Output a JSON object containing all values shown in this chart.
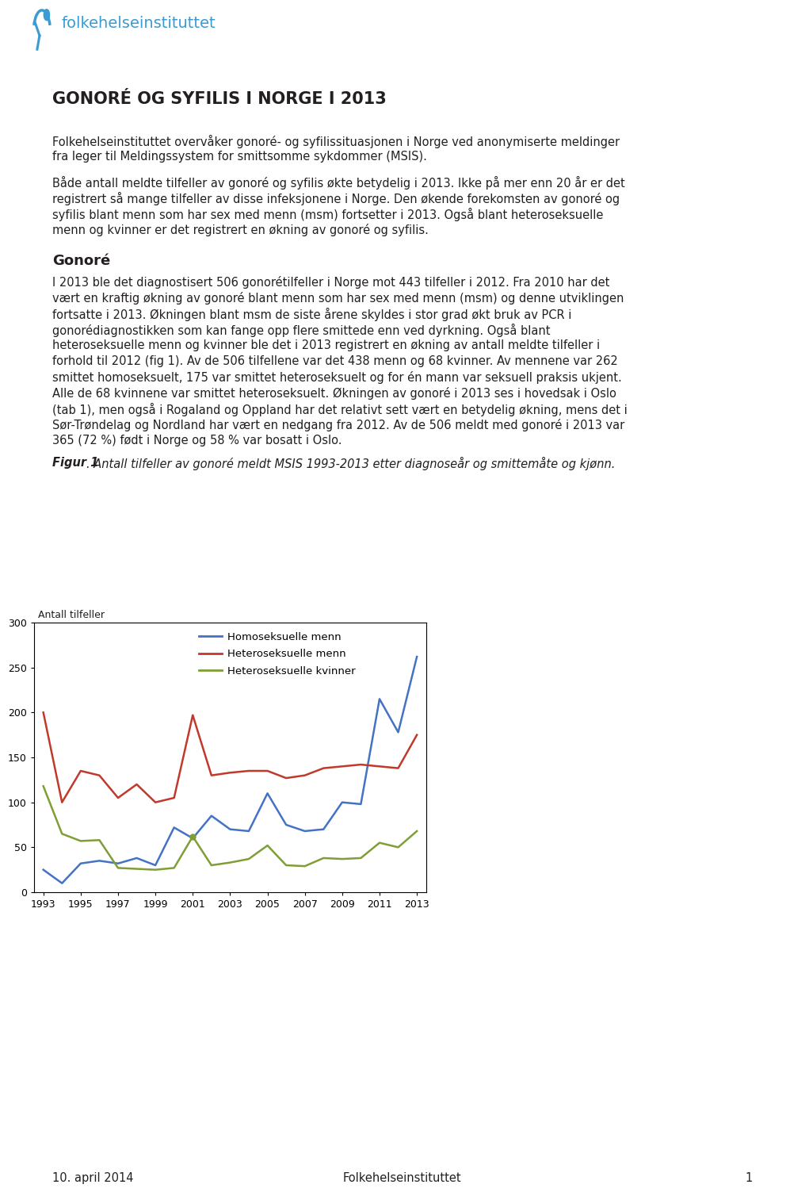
{
  "title": "GONORÉ OG SYFILIS I NORGE I 2013",
  "header_line1": "Folkehelseinstituttet overvåker gonoré- og syfilissituasjonen i Norge ved anonymiserte meldinger",
  "header_line2": "fra leger til Meldingssystem for smittsomme sykdommer (MSIS).",
  "para1_line1": "Både antall meldte tilfeller av gonoré og syfilis økte betydelig i 2013. Ikke på mer enn 20 år er det",
  "para1_line2": "registrert så mange tilfeller av disse infeksjonene i Norge. Den økende forekomsten av gonoré og",
  "para1_line3": "syfilis blant menn som har sex med menn (msm) fortsetter i 2013. Også blant heteroseksuelle",
  "para1_line4": "menn og kvinner er det registrert en økning av gonoré og syfilis.",
  "section_gonoree": "Gonoré",
  "para2_line1": "I 2013 ble det diagnostisert 506 gonorétilfeller i Norge mot 443 tilfeller i 2012. Fra 2010 har det",
  "para2_line2": "vært en kraftig økning av gonoré blant menn som har sex med menn (msm) og denne utviklingen",
  "para2_line3": "fortsatte i 2013. Økningen blant msm de siste årene skyldes i stor grad økt bruk av PCR i",
  "para2_line4": "gonorédiagnostikken som kan fange opp flere smittede enn ved dyrkning. Også blant",
  "para2_line5": "heteroseksuelle menn og kvinner ble det i 2013 registrert en økning av antall meldte tilfeller i",
  "para2_line6": "forhold til 2012 (fig 1). Av de 506 tilfellene var det 438 menn og 68 kvinner. Av mennene var 262",
  "para2_line7": "smittet homoseksuelt, 175 var smittet heteroseksuelt og for én mann var seksuell praksis ukjent.",
  "para2_line8": "Alle de 68 kvinnene var smittet heteroseksuelt. Økningen av gonoré i 2013 ses i hovedsak i Oslo",
  "para2_line9": "(tab 1), men også i Rogaland og Oppland har det relativt sett vært en betydelig økning, mens det i",
  "para2_line10": "Sør-Trøndelag og Nordland har vært en nedgang fra 2012. Av de 506 meldt med gonoré i 2013 var",
  "para2_line11": "365 (72 %) født i Norge og 58 % var bosatt i Oslo.",
  "fig1_bold": "Figur 1",
  "fig1_italic": ". Antall tilfeller av gonoré meldt MSIS 1993-2013 etter diagnoseår og smittemåte og kjønn.",
  "footer_date": "10. april 2014",
  "footer_center": "Folkehelseinstituttet",
  "footer_page": "1",
  "footer_line_color": "#5b9bd5",
  "years": [
    1993,
    1994,
    1995,
    1996,
    1997,
    1998,
    1999,
    2000,
    2001,
    2002,
    2003,
    2004,
    2005,
    2006,
    2007,
    2008,
    2009,
    2010,
    2011,
    2012,
    2013
  ],
  "homo_menn": [
    25,
    10,
    32,
    35,
    32,
    38,
    30,
    72,
    60,
    85,
    70,
    68,
    110,
    75,
    68,
    70,
    100,
    98,
    215,
    178,
    262
  ],
  "hetero_menn": [
    200,
    100,
    135,
    130,
    105,
    120,
    100,
    105,
    197,
    130,
    133,
    135,
    135,
    127,
    130,
    138,
    140,
    142,
    140,
    138,
    175
  ],
  "hetero_kvinner": [
    118,
    65,
    57,
    58,
    27,
    26,
    25,
    27,
    62,
    30,
    33,
    37,
    52,
    30,
    29,
    38,
    37,
    38,
    55,
    50,
    68
  ],
  "line_color_homo": "#4472c4",
  "line_color_hetero_menn": "#c0392b",
  "line_color_hetero_kvinner": "#7f9e35",
  "ylabel": "Antall tilfeller",
  "yticks": [
    0,
    50,
    100,
    150,
    200,
    250,
    300
  ],
  "xtick_labels": [
    "1993",
    "1995",
    "1997",
    "1999",
    "2001",
    "2003",
    "2005",
    "2007",
    "2009",
    "2011",
    "2013"
  ],
  "legend_homo": "Homoseksuelle menn",
  "legend_hetero_menn": "Heteroseksuelle menn",
  "legend_hetero_kvinner": "Heteroseksuelle kvinner",
  "logo_text": "folkehelseinstituttet",
  "logo_color": "#3a9cd4",
  "text_color": "#231f20",
  "body_fontsize": 10.5,
  "title_fontsize": 15
}
